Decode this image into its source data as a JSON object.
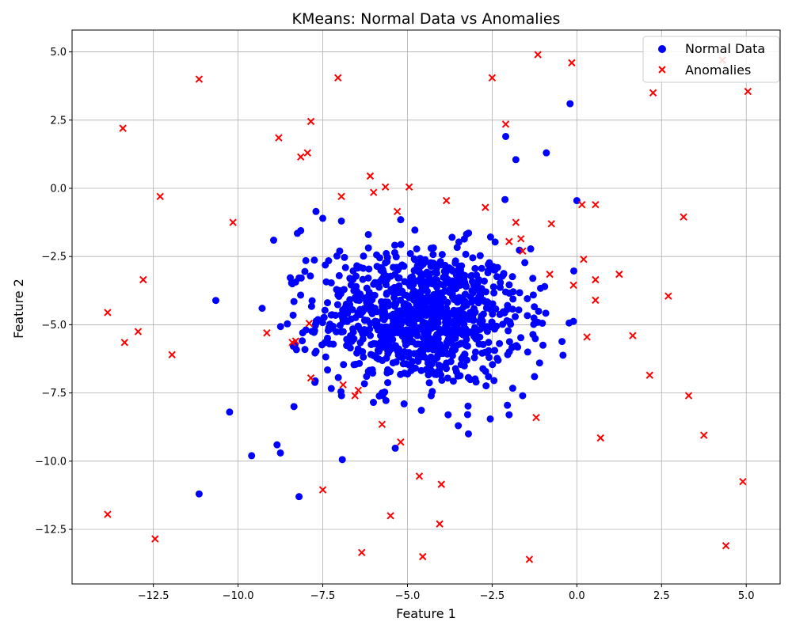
{
  "chart_data": {
    "type": "scatter",
    "title": "KMeans: Normal Data vs Anomalies",
    "xlabel": "Feature 1",
    "ylabel": "Feature 2",
    "xlim": [
      -14.9,
      6.0
    ],
    "ylim": [
      -14.5,
      5.8
    ],
    "xticks": [
      -12.5,
      -10.0,
      -7.5,
      -5.0,
      -2.5,
      0.0,
      2.5,
      5.0
    ],
    "xtick_labels": [
      "−12.5",
      "−10.0",
      "−7.5",
      "−5.0",
      "−2.5",
      "0.0",
      "2.5",
      "5.0"
    ],
    "yticks": [
      5.0,
      2.5,
      0.0,
      -2.5,
      -5.0,
      -7.5,
      -10.0,
      -12.5
    ],
    "ytick_labels": [
      "5.0",
      "2.5",
      "0.0",
      "−2.5",
      "−5.0",
      "−7.5",
      "−10.0",
      "−12.5"
    ],
    "grid": true,
    "legend_position": "top-right",
    "colors": {
      "normal": "#0000ff",
      "anomaly": "#ff0000"
    },
    "series": [
      {
        "name": "Normal Data",
        "marker": "circle",
        "cluster": {
          "count": 1000,
          "mean": [
            -4.6,
            -4.7
          ],
          "std": [
            1.5,
            1.25
          ]
        },
        "points": [
          [
            -0.2,
            3.1
          ],
          [
            -2.1,
            1.9
          ],
          [
            -1.8,
            1.05
          ],
          [
            -0.9,
            1.3
          ],
          [
            0.0,
            -0.45
          ],
          [
            -8.95,
            -1.9
          ],
          [
            -8.25,
            -1.65
          ],
          [
            -8.15,
            -1.55
          ],
          [
            -7.7,
            -0.85
          ],
          [
            -7.5,
            -1.1
          ],
          [
            -6.95,
            -1.2
          ],
          [
            -8.4,
            -3.5
          ],
          [
            -8.35,
            -4.15
          ],
          [
            -7.3,
            -5.7
          ],
          [
            -0.95,
            -3.6
          ],
          [
            -1.1,
            -6.4
          ],
          [
            -1.45,
            -6.0
          ],
          [
            -10.25,
            -8.2
          ],
          [
            -8.35,
            -8.0
          ],
          [
            -9.6,
            -9.8
          ],
          [
            -8.85,
            -9.4
          ],
          [
            -8.75,
            -9.7
          ],
          [
            -11.15,
            -11.2
          ],
          [
            -8.2,
            -11.3
          ],
          [
            -3.5,
            -8.7
          ],
          [
            -3.2,
            -9.0
          ],
          [
            -3.8,
            -8.3
          ],
          [
            -2.0,
            -8.3
          ],
          [
            -2.05,
            -7.95
          ],
          [
            -1.25,
            -6.9
          ],
          [
            -5.1,
            -7.9
          ],
          [
            -5.75,
            -7.5
          ],
          [
            -4.3,
            -7.6
          ],
          [
            -1.6,
            -7.6
          ],
          [
            -7.0,
            -2.3
          ],
          [
            -6.7,
            -3.3
          ],
          [
            -8.0,
            -2.65
          ],
          [
            -1.0,
            -5.75
          ],
          [
            -1.3,
            -3.3
          ],
          [
            -5.2,
            -1.15
          ]
        ]
      },
      {
        "name": "Anomalies",
        "marker": "x",
        "points": [
          [
            -11.15,
            4.0
          ],
          [
            -7.05,
            4.05
          ],
          [
            -1.15,
            4.9
          ],
          [
            -0.15,
            4.6
          ],
          [
            4.3,
            4.7
          ],
          [
            -2.5,
            4.05
          ],
          [
            5.05,
            3.55
          ],
          [
            2.25,
            3.5
          ],
          [
            -13.4,
            2.2
          ],
          [
            -7.85,
            2.45
          ],
          [
            -8.8,
            1.85
          ],
          [
            -7.95,
            1.3
          ],
          [
            -8.15,
            1.15
          ],
          [
            -2.1,
            2.35
          ],
          [
            -6.1,
            0.45
          ],
          [
            -5.65,
            0.05
          ],
          [
            -4.95,
            0.05
          ],
          [
            -6.0,
            -0.15
          ],
          [
            -12.3,
            -0.3
          ],
          [
            -6.95,
            -0.3
          ],
          [
            -3.85,
            -0.45
          ],
          [
            -2.7,
            -0.7
          ],
          [
            0.15,
            -0.6
          ],
          [
            0.55,
            -0.6
          ],
          [
            3.15,
            -1.05
          ],
          [
            -10.15,
            -1.25
          ],
          [
            -5.3,
            -0.85
          ],
          [
            -1.8,
            -1.25
          ],
          [
            -0.75,
            -1.3
          ],
          [
            -1.65,
            -1.85
          ],
          [
            -2.0,
            -1.95
          ],
          [
            -1.6,
            -2.3
          ],
          [
            0.2,
            -2.6
          ],
          [
            -0.8,
            -3.15
          ],
          [
            1.25,
            -3.15
          ],
          [
            -12.8,
            -3.35
          ],
          [
            0.55,
            -3.35
          ],
          [
            -0.1,
            -3.55
          ],
          [
            2.7,
            -3.95
          ],
          [
            0.55,
            -4.1
          ],
          [
            -13.85,
            -4.55
          ],
          [
            -7.9,
            -4.95
          ],
          [
            -12.95,
            -5.25
          ],
          [
            -9.15,
            -5.3
          ],
          [
            0.3,
            -5.45
          ],
          [
            1.65,
            -5.4
          ],
          [
            -13.35,
            -5.65
          ],
          [
            -8.3,
            -5.6
          ],
          [
            -8.4,
            -5.65
          ],
          [
            -11.95,
            -6.1
          ],
          [
            2.15,
            -6.85
          ],
          [
            -7.85,
            -6.95
          ],
          [
            -6.9,
            -7.2
          ],
          [
            -6.45,
            -7.4
          ],
          [
            -6.55,
            -7.6
          ],
          [
            3.3,
            -7.6
          ],
          [
            -5.75,
            -8.65
          ],
          [
            -1.2,
            -8.4
          ],
          [
            3.75,
            -9.05
          ],
          [
            0.7,
            -9.15
          ],
          [
            -5.2,
            -9.3
          ],
          [
            -4.65,
            -10.55
          ],
          [
            -4.0,
            -10.85
          ],
          [
            -7.5,
            -11.05
          ],
          [
            4.9,
            -10.75
          ],
          [
            -13.85,
            -11.95
          ],
          [
            -5.5,
            -12.0
          ],
          [
            -4.05,
            -12.3
          ],
          [
            -12.45,
            -12.85
          ],
          [
            4.4,
            -13.1
          ],
          [
            -6.35,
            -13.35
          ],
          [
            -4.55,
            -13.5
          ],
          [
            -1.4,
            -13.6
          ]
        ]
      }
    ]
  }
}
